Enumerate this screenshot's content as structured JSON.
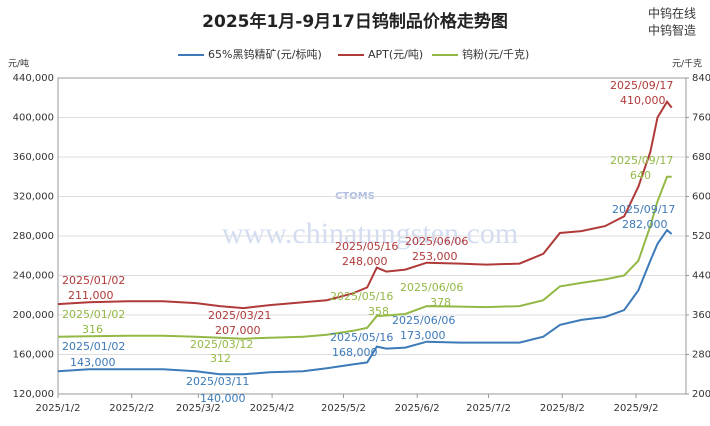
{
  "chart_data": {
    "type": "line",
    "title": "2025年1月-9月17日钨制品价格走势图",
    "brand": [
      "中钨在线",
      "中钨智造"
    ],
    "watermark": "www.chinatungsten.com",
    "watermark_logo": "CTOMS",
    "y_label": "元/吨",
    "y2_label": "元/千克",
    "x": [
      "2025-01-02",
      "2025-01-15",
      "2025-02-01",
      "2025-02-15",
      "2025-03-01",
      "2025-03-11",
      "2025-03-21",
      "2025-04-01",
      "2025-04-15",
      "2025-04-25",
      "2025-05-06",
      "2025-05-12",
      "2025-05-16",
      "2025-05-20",
      "2025-05-28",
      "2025-06-06",
      "2025-06-20",
      "2025-07-01",
      "2025-07-15",
      "2025-07-25",
      "2025-08-01",
      "2025-08-10",
      "2025-08-20",
      "2025-08-28",
      "2025-09-03",
      "2025-09-08",
      "2025-09-11",
      "2025-09-15",
      "2025-09-17"
    ],
    "xlim": [
      "2025-01-02",
      "2025-09-23"
    ],
    "xticks": [
      {
        "value": "2025-01-02",
        "label": "2025/1/2"
      },
      {
        "value": "2025-02-02",
        "label": "2025/2/2"
      },
      {
        "value": "2025-03-02",
        "label": "2025/3/2"
      },
      {
        "value": "2025-04-02",
        "label": "2025/4/2"
      },
      {
        "value": "2025-05-02",
        "label": "2025/5/2"
      },
      {
        "value": "2025-06-02",
        "label": "2025/6/2"
      },
      {
        "value": "2025-07-02",
        "label": "2025/7/2"
      },
      {
        "value": "2025-08-02",
        "label": "2025/8/2"
      },
      {
        "value": "2025-09-02",
        "label": "2025/9/2"
      }
    ],
    "ylim": [
      120000,
      440000
    ],
    "yticks": [
      {
        "value": 120000,
        "label": "120,000"
      },
      {
        "value": 160000,
        "label": "160,000"
      },
      {
        "value": 200000,
        "label": "200,000"
      },
      {
        "value": 240000,
        "label": "240,000"
      },
      {
        "value": 280000,
        "label": "280,000"
      },
      {
        "value": 320000,
        "label": "320,000"
      },
      {
        "value": 360000,
        "label": "360,000"
      },
      {
        "value": 400000,
        "label": "400,000"
      },
      {
        "value": 440000,
        "label": "440,000"
      }
    ],
    "y2lim": [
      200,
      840
    ],
    "y2ticks": [
      200,
      280,
      360,
      440,
      520,
      600,
      680,
      760,
      840
    ],
    "grid": true,
    "series": [
      {
        "name": "65%黑钨精矿(元/标吨)",
        "color": "#3d7ab8",
        "values": [
          143000,
          145000,
          145000,
          145000,
          143000,
          140000,
          140000,
          142000,
          143000,
          146000,
          150000,
          152000,
          168000,
          166000,
          167000,
          173000,
          172000,
          172000,
          172000,
          178000,
          190000,
          195000,
          198000,
          205000,
          225000,
          255000,
          272000,
          286000,
          282000
        ],
        "annotations": [
          [
            "2025/01/02",
            "143,000"
          ],
          [
            "2025/03/11",
            "140,000"
          ],
          [
            "2025/05/16",
            "168,000"
          ],
          [
            "2025/06/06",
            "173,000"
          ],
          [
            "2025/09/17",
            "282,000"
          ]
        ]
      },
      {
        "name": "APT(元/吨)",
        "color": "#b03a3a",
        "values": [
          211000,
          213000,
          214000,
          214000,
          212000,
          209000,
          207000,
          210000,
          213000,
          215000,
          222000,
          228000,
          248000,
          244000,
          246000,
          253000,
          252000,
          251000,
          252000,
          262000,
          283000,
          285000,
          290000,
          300000,
          330000,
          365000,
          400000,
          416000,
          410000
        ],
        "annotations": [
          [
            "2025/01/02",
            "211,000"
          ],
          [
            "2025/03/21",
            "207,000"
          ],
          [
            "2025/05/16",
            "248,000"
          ],
          [
            "2025/06/06",
            "253,000"
          ],
          [
            "2025/09/17",
            "410,000"
          ]
        ]
      },
      {
        "name": "钨粉(元/千克)",
        "color": "#93b845",
        "axis": "y2",
        "values": [
          316,
          317,
          318,
          318,
          316,
          314,
          312,
          314,
          316,
          320,
          328,
          334,
          358,
          359,
          362,
          378,
          377,
          376,
          378,
          390,
          418,
          425,
          432,
          440,
          470,
          540,
          590,
          640,
          640
        ],
        "annotations": [
          [
            "2025/01/02",
            "316"
          ],
          [
            "2025/03/12",
            "312"
          ],
          [
            "2025/05/16",
            "358"
          ],
          [
            "2025/06/06",
            "378"
          ],
          [
            "2025/09/17",
            "640"
          ]
        ]
      }
    ]
  }
}
